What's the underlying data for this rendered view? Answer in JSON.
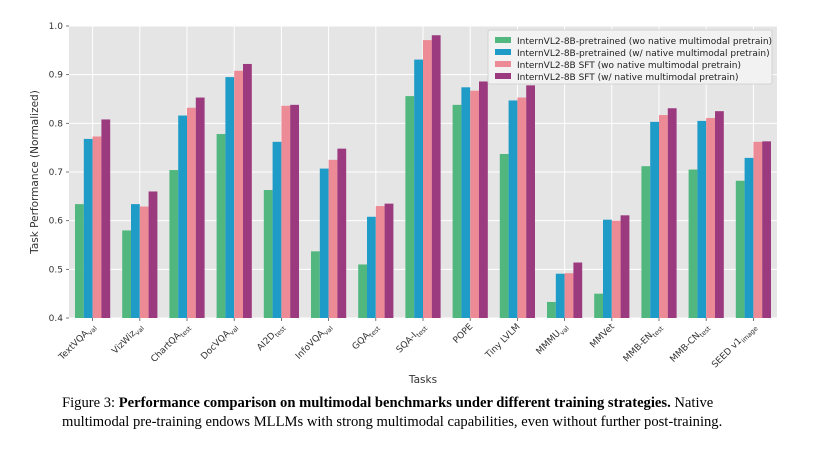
{
  "chart_data": {
    "type": "bar",
    "title": "",
    "xlabel": "Tasks",
    "ylabel": "Task Performance (Normalized)",
    "ylim": [
      0.4,
      1.0
    ],
    "yticks": [
      "0.4",
      "0.5",
      "0.6",
      "0.7",
      "0.8",
      "0.9",
      "1.0"
    ],
    "grid": true,
    "legend_position": "top-right",
    "categories": [
      {
        "base": "TextVQA",
        "sub": "val"
      },
      {
        "base": "VizWiz",
        "sub": "val"
      },
      {
        "base": "ChartQA",
        "sub": "test"
      },
      {
        "base": "DocVQA",
        "sub": "val"
      },
      {
        "base": "AI2D",
        "sub": "test"
      },
      {
        "base": "InfoVQA",
        "sub": "val"
      },
      {
        "base": "GQA",
        "sub": "test"
      },
      {
        "base": "SQA-I",
        "sub": "test"
      },
      {
        "base": "POPE",
        "sub": ""
      },
      {
        "base": "Tiny LVLM",
        "sub": ""
      },
      {
        "base": "MMMU",
        "sub": "val"
      },
      {
        "base": "MMVet",
        "sub": ""
      },
      {
        "base": "MMB-EN",
        "sub": "test"
      },
      {
        "base": "MMB-CN",
        "sub": "test"
      },
      {
        "base": "SEED v1",
        "sub": "image"
      }
    ],
    "series": [
      {
        "name": "InternVL2-8B-pretrained (wo native multimodal pretrain)",
        "color": "#52b77f",
        "values": [
          0.634,
          0.58,
          0.704,
          0.778,
          0.663,
          0.537,
          0.51,
          0.856,
          0.838,
          0.737,
          0.433,
          0.45,
          0.712,
          0.705,
          0.682
        ]
      },
      {
        "name": "InternVL2-8B-pretrained (w/ native multimodal pretrain)",
        "color": "#1f9bc7",
        "values": [
          0.768,
          0.634,
          0.816,
          0.895,
          0.762,
          0.707,
          0.608,
          0.931,
          0.874,
          0.847,
          0.491,
          0.602,
          0.803,
          0.805,
          0.729
        ]
      },
      {
        "name": "InternVL2-8B SFT (wo native multimodal pretrain)",
        "color": "#ec8a95",
        "values": [
          0.773,
          0.629,
          0.832,
          0.908,
          0.836,
          0.725,
          0.63,
          0.971,
          0.867,
          0.853,
          0.492,
          0.6,
          0.817,
          0.811,
          0.762
        ]
      },
      {
        "name": "InternVL2-8B SFT (w/ native multimodal pretrain)",
        "color": "#9b3a7f",
        "values": [
          0.808,
          0.66,
          0.853,
          0.922,
          0.838,
          0.748,
          0.635,
          0.981,
          0.886,
          0.878,
          0.514,
          0.611,
          0.831,
          0.825,
          0.763
        ]
      }
    ]
  },
  "caption": {
    "label": "Figure 3:",
    "bold": "Performance comparison on multimodal benchmarks under different training strategies.",
    "text": "Native multimodal pre-training endows MLLMs with strong multimodal capabilities, even without further post-training."
  }
}
